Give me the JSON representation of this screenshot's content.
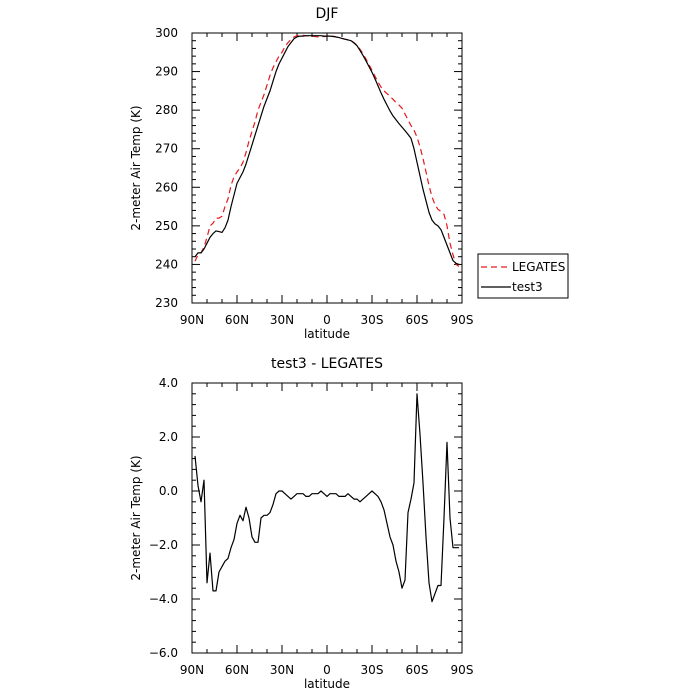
{
  "chart_data": [
    {
      "type": "line",
      "title": "DJF",
      "xlabel": "latitude",
      "ylabel": "2-meter Air Temp (K)",
      "xlim": [
        90,
        -90
      ],
      "ylim": [
        230,
        300
      ],
      "x_ticks": [
        {
          "value": 90,
          "label": "90N"
        },
        {
          "value": 60,
          "label": "60N"
        },
        {
          "value": 30,
          "label": "30N"
        },
        {
          "value": 0,
          "label": "0"
        },
        {
          "value": -30,
          "label": "30S"
        },
        {
          "value": -60,
          "label": "60S"
        },
        {
          "value": -90,
          "label": "90S"
        }
      ],
      "y_ticks": [
        {
          "value": 230,
          "label": "230"
        },
        {
          "value": 240,
          "label": "240"
        },
        {
          "value": 250,
          "label": "250"
        },
        {
          "value": 260,
          "label": "260"
        },
        {
          "value": 270,
          "label": "270"
        },
        {
          "value": 280,
          "label": "280"
        },
        {
          "value": 290,
          "label": "290"
        },
        {
          "value": 300,
          "label": "300"
        }
      ],
      "legend": {
        "placement": "outside-right"
      },
      "series": [
        {
          "name": "LEGATES",
          "color": "#e41a1c",
          "dash": "dashed",
          "x": [
            88,
            86,
            84,
            82,
            80,
            78,
            76,
            74,
            72,
            70,
            68,
            66,
            64,
            62,
            60,
            58,
            56,
            54,
            52,
            50,
            48,
            46,
            44,
            42,
            40,
            38,
            36,
            34,
            32,
            30,
            28,
            26,
            24,
            22,
            20,
            18,
            16,
            14,
            12,
            10,
            8,
            6,
            4,
            2,
            0,
            -2,
            -4,
            -6,
            -8,
            -10,
            -12,
            -14,
            -16,
            -18,
            -20,
            -22,
            -24,
            -26,
            -28,
            -30,
            -32,
            -34,
            -36,
            -38,
            -40,
            -42,
            -44,
            -46,
            -48,
            -50,
            -52,
            -54,
            -56,
            -58,
            -60,
            -62,
            -64,
            -66,
            -68,
            -70,
            -72,
            -74,
            -76,
            -78,
            -80,
            -82,
            -84,
            -86,
            -88
          ],
          "values": [
            240.8,
            242.5,
            243.0,
            244.5,
            247.0,
            250.0,
            250.7,
            252.0,
            252.0,
            252.5,
            255.0,
            257.0,
            260.5,
            262.7,
            264.0,
            265.0,
            266.5,
            269.0,
            272.0,
            274.5,
            277.0,
            280.0,
            282.0,
            284.0,
            286.5,
            289.0,
            291.0,
            292.5,
            294.0,
            295.0,
            296.5,
            297.5,
            298.3,
            299.0,
            299.3,
            299.4,
            299.4,
            299.3,
            299.2,
            299.2,
            299.1,
            299.0,
            299.0,
            299.1,
            299.2,
            299.3,
            299.2,
            299.0,
            298.8,
            298.6,
            298.4,
            298.2,
            298.0,
            297.5,
            296.8,
            295.8,
            294.6,
            293.2,
            291.8,
            290.3,
            288.8,
            287.3,
            286.0,
            285.0,
            284.3,
            283.6,
            282.8,
            282.0,
            281.3,
            280.5,
            279.0,
            277.5,
            276.0,
            274.8,
            273.0,
            270.5,
            267.5,
            264.0,
            260.5,
            257.5,
            255.5,
            254.3,
            253.7,
            253.0,
            250.0,
            245.5,
            242.5,
            240.0,
            239.5
          ]
        },
        {
          "name": "test3",
          "color": "#000000",
          "dash": "solid",
          "x": [
            88,
            86,
            84,
            82,
            80,
            78,
            76,
            74,
            72,
            70,
            68,
            66,
            64,
            62,
            60,
            58,
            56,
            54,
            52,
            50,
            48,
            46,
            44,
            42,
            40,
            38,
            36,
            34,
            32,
            30,
            28,
            26,
            24,
            22,
            20,
            18,
            16,
            14,
            12,
            10,
            8,
            6,
            4,
            2,
            0,
            -2,
            -4,
            -6,
            -8,
            -10,
            -12,
            -14,
            -16,
            -18,
            -20,
            -22,
            -24,
            -26,
            -28,
            -30,
            -32,
            -34,
            -36,
            -38,
            -40,
            -42,
            -44,
            -46,
            -48,
            -50,
            -52,
            -54,
            -56,
            -58,
            -60,
            -62,
            -64,
            -66,
            -68,
            -70,
            -72,
            -74,
            -76,
            -78,
            -80,
            -82,
            -84,
            -86,
            -88
          ],
          "values": [
            242.0,
            243.0,
            243.0,
            244.0,
            245.5,
            247.0,
            248.0,
            248.7,
            248.5,
            248.3,
            249.5,
            251.5,
            255.0,
            258.0,
            261.0,
            262.5,
            264.0,
            266.0,
            268.5,
            271.0,
            273.5,
            276.0,
            278.5,
            281.0,
            283.0,
            285.0,
            287.5,
            290.0,
            292.0,
            293.5,
            295.0,
            296.5,
            297.5,
            298.5,
            299.0,
            299.2,
            299.2,
            299.3,
            299.3,
            299.3,
            299.3,
            299.3,
            299.3,
            299.2,
            299.2,
            299.2,
            299.1,
            299.0,
            298.8,
            298.6,
            298.4,
            298.2,
            298.0,
            297.4,
            296.7,
            295.5,
            294.2,
            292.8,
            291.3,
            289.8,
            288.1,
            286.3,
            284.5,
            282.8,
            281.3,
            279.8,
            278.5,
            277.5,
            276.5,
            275.6,
            274.7,
            273.7,
            272.7,
            270.0,
            266.5,
            263.0,
            259.5,
            256.5,
            253.5,
            251.5,
            250.5,
            250.0,
            249.0,
            247.0,
            245.0,
            243.0,
            241.0,
            240.3,
            240.0
          ]
        }
      ]
    },
    {
      "type": "line",
      "title": "test3 - LEGATES",
      "xlabel": "latitude",
      "ylabel": "2-meter Air Temp (K)",
      "xlim": [
        90,
        -90
      ],
      "ylim": [
        -6.0,
        4.0
      ],
      "x_ticks": [
        {
          "value": 90,
          "label": "90N"
        },
        {
          "value": 60,
          "label": "60N"
        },
        {
          "value": 30,
          "label": "30N"
        },
        {
          "value": 0,
          "label": "0"
        },
        {
          "value": -30,
          "label": "30S"
        },
        {
          "value": -60,
          "label": "60S"
        },
        {
          "value": -90,
          "label": "90S"
        }
      ],
      "y_ticks": [
        {
          "value": -6.0,
          "label": "−6.0"
        },
        {
          "value": -4.0,
          "label": "−4.0"
        },
        {
          "value": -2.0,
          "label": "−2.0"
        },
        {
          "value": 0.0,
          "label": "0.0"
        },
        {
          "value": 2.0,
          "label": "2.0"
        },
        {
          "value": 4.0,
          "label": "4.0"
        }
      ],
      "series": [
        {
          "name": "",
          "color": "#000000",
          "dash": "solid",
          "x": [
            88,
            86,
            84,
            82,
            80,
            78,
            76,
            74,
            72,
            70,
            68,
            66,
            64,
            62,
            60,
            58,
            56,
            54,
            52,
            50,
            48,
            46,
            44,
            42,
            40,
            38,
            36,
            34,
            32,
            30,
            28,
            26,
            24,
            22,
            20,
            18,
            16,
            14,
            12,
            10,
            8,
            6,
            4,
            2,
            0,
            -2,
            -4,
            -6,
            -8,
            -10,
            -12,
            -14,
            -16,
            -18,
            -20,
            -22,
            -24,
            -26,
            -28,
            -30,
            -32,
            -34,
            -36,
            -38,
            -40,
            -42,
            -44,
            -46,
            -48,
            -50,
            -52,
            -54,
            -56,
            -58,
            -60,
            -62,
            -64,
            -66,
            -68,
            -70,
            -72,
            -74,
            -76,
            -78,
            -80,
            -82,
            -84,
            -86,
            -88
          ],
          "values": [
            1.3,
            0.2,
            -0.4,
            0.4,
            -3.4,
            -2.3,
            -3.7,
            -3.7,
            -3.0,
            -2.8,
            -2.6,
            -2.5,
            -2.1,
            -1.8,
            -1.2,
            -0.9,
            -1.1,
            -0.6,
            -1.0,
            -1.7,
            -1.9,
            -1.9,
            -1.0,
            -0.9,
            -0.9,
            -0.8,
            -0.5,
            -0.1,
            0.0,
            0.0,
            -0.1,
            -0.2,
            -0.3,
            -0.2,
            -0.1,
            -0.1,
            -0.1,
            -0.2,
            -0.2,
            -0.1,
            -0.1,
            -0.1,
            0.0,
            -0.1,
            -0.2,
            -0.1,
            -0.1,
            -0.1,
            -0.2,
            -0.2,
            -0.2,
            -0.1,
            -0.2,
            -0.3,
            -0.3,
            -0.4,
            -0.3,
            -0.2,
            -0.1,
            0.0,
            -0.1,
            -0.2,
            -0.4,
            -0.7,
            -1.2,
            -1.7,
            -2.0,
            -2.6,
            -3.0,
            -3.6,
            -3.3,
            -0.8,
            -0.3,
            0.3,
            3.6,
            2.1,
            0.3,
            -1.7,
            -3.4,
            -4.1,
            -3.8,
            -3.5,
            -3.5,
            -1.0,
            1.8,
            -1.0,
            -2.1,
            -2.1,
            -2.1
          ]
        }
      ]
    }
  ]
}
